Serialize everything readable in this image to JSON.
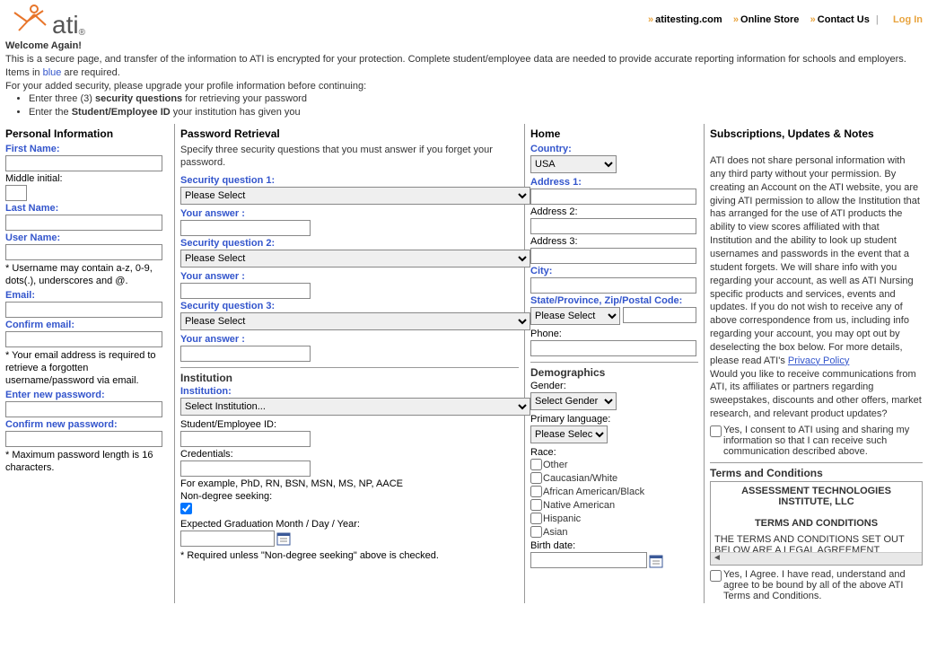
{
  "nav": {
    "link1": "atitesting.com",
    "link2": "Online Store",
    "link3": "Contact Us",
    "login": "Log In"
  },
  "logo_text": "ati",
  "intro": {
    "title": "Welcome Again!",
    "line1": "This is a secure page, and transfer of the information to ATI is encrypted for your protection. Complete student/employee data are needed to provide accurate reporting information for schools and employers.",
    "line2_prefix": "Items in ",
    "line2_blue": "blue",
    "line2_suffix": " are required.",
    "line3": "For your added security, please upgrade your profile information before continuing:",
    "bullet1_a": "Enter three (3) ",
    "bullet1_b": "security questions",
    "bullet1_c": " for retrieving your password",
    "bullet2_a": "Enter the ",
    "bullet2_b": "Student/Employee ID",
    "bullet2_c": " your institution has given you"
  },
  "personal": {
    "heading": "Personal Information",
    "first_name": "First Name:",
    "middle_initial": "Middle initial:",
    "last_name": "Last Name:",
    "user_name": "User Name:",
    "username_note": "* Username may contain a-z, 0-9, dots(.), underscores and @.",
    "email": "Email:",
    "confirm_email": "Confirm email:",
    "email_note": "* Your email address is required to retrieve a forgotten username/password via email.",
    "new_password": "Enter new password:",
    "confirm_password": "Confirm new password:",
    "password_note": "* Maximum password length is 16 characters."
  },
  "password_retrieval": {
    "heading": "Password Retrieval",
    "spec": "Specify three security questions that you must answer if you forget your password.",
    "sq1": "Security question 1:",
    "sq2": "Security question 2:",
    "sq3": "Security question 3:",
    "answer": "Your answer :",
    "select_placeholder": "Please Select"
  },
  "institution": {
    "heading": "Institution",
    "label": "Institution:",
    "select_placeholder": "Select Institution...",
    "student_id": "Student/Employee ID:",
    "credentials": "Credentials:",
    "cred_example": "For example, PhD, RN, BSN, MSN, MS, NP, AACE",
    "non_degree": "Non-degree seeking:",
    "grad_date": "Expected Graduation Month / Day / Year:",
    "grad_note": "* Required unless \"Non-degree seeking\" above is checked."
  },
  "home": {
    "heading": "Home",
    "country": "Country:",
    "country_value": "USA",
    "address1": "Address 1:",
    "address2": "Address 2:",
    "address3": "Address 3:",
    "city": "City:",
    "state": "State/Province, Zip/Postal Code:",
    "state_placeholder": "Please Select",
    "phone": "Phone:"
  },
  "demographics": {
    "heading": "Demographics",
    "gender": "Gender:",
    "gender_placeholder": "Select Gender",
    "primary_lang": "Primary language:",
    "lang_placeholder": "Please Select",
    "race": "Race:",
    "race_options": [
      "Other",
      "Caucasian/White",
      "African American/Black",
      "Native American",
      "Hispanic",
      "Asian"
    ],
    "birth_date": "Birth date:"
  },
  "subscriptions": {
    "heading": "Subscriptions, Updates & Notes",
    "body": "ATI does not share personal information with any third party without your permission. By creating an Account on the ATI website, you are giving ATI permission to allow the Institution that has arranged for the use of ATI products the ability to view scores affiliated with that Institution and the ability to look up student usernames and passwords in the event that a student forgets. We will share info with you regarding your account, as well as ATI Nursing specific products and services, events and updates. If you do not wish to receive any of above correspondence from us, including info regarding your account, you may opt out by deselecting the box below. For more details, please read ATI's ",
    "privacy_link": "Privacy Policy",
    "consent_q": "Would you like to receive communications from ATI, its affiliates or partners regarding sweepstakes, discounts and other offers, market research, and relevant product updates?",
    "consent_cb": "Yes, I consent to ATI using and sharing my information so that I can receive such communication described above."
  },
  "terms": {
    "heading": "Terms and Conditions",
    "title1": "ASSESSMENT TECHNOLOGIES INSTITUTE, LLC",
    "title2": "TERMS AND CONDITIONS",
    "body": "THE TERMS AND CONDITIONS SET OUT BELOW ARE A LEGAL AGREEMENT",
    "agree": "Yes, I Agree. I have read, understand and agree to be bound by all of the above ATI Terms and Conditions."
  }
}
